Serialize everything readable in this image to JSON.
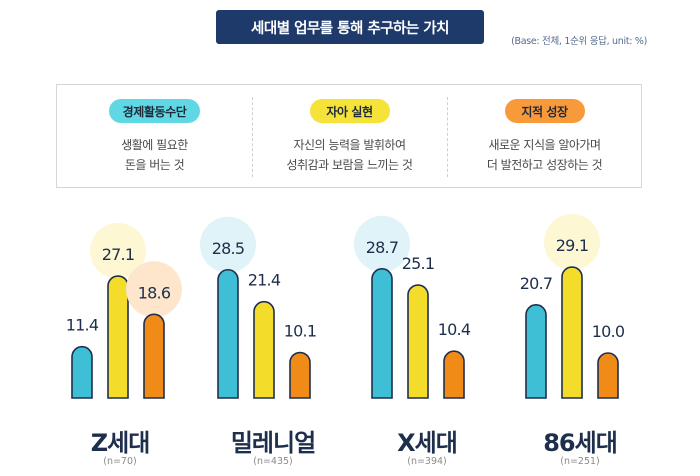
{
  "header": {
    "title": "세대별 업무를 통해 추구하는 가치",
    "base_note": "(Base: 전체, 1순위 응답, unit: %)"
  },
  "legend": [
    {
      "label": "경제활동수단",
      "desc_line1": "생활에 필요한",
      "desc_line2": "돈을 버는 것",
      "color": "#5fd8e4"
    },
    {
      "label": "자아 실현",
      "desc_line1": "자신의 능력을 발휘하여",
      "desc_line2": "성취감과 보람을 느끼는 것",
      "color": "#f6e33a"
    },
    {
      "label": "지적 성장",
      "desc_line1": "새로운 지식을 알아가며",
      "desc_line2": "더 발전하고 성장하는 것",
      "color": "#f99a3a"
    }
  ],
  "colors": {
    "bar1": "#3fbfd6",
    "bar2": "#f3dc2a",
    "bar3": "#f08b17",
    "bar_stroke": "#1e2f4d",
    "halo1": "#dff3f8",
    "halo2": "#fdf7d4",
    "halo3": "#fde6cc"
  },
  "chart_data": {
    "type": "bar",
    "categories": [
      "Z세대",
      "밀레니얼",
      "X세대",
      "86세대"
    ],
    "category_n": [
      "(n=70)",
      "(n=435)",
      "(n=394)",
      "(n=251)"
    ],
    "series": [
      {
        "name": "경제활동수단",
        "values": [
          11.4,
          28.5,
          28.7,
          20.7
        ]
      },
      {
        "name": "자아 실현",
        "values": [
          27.1,
          21.4,
          25.1,
          29.1
        ]
      },
      {
        "name": "지적 성장",
        "values": [
          18.6,
          10.1,
          10.4,
          10.0
        ]
      }
    ],
    "highlight_max": true,
    "value_labels": [
      [
        "11.4",
        "27.1",
        "18.6"
      ],
      [
        "28.5",
        "21.4",
        "10.1"
      ],
      [
        "28.7",
        "25.1",
        "10.4"
      ],
      [
        "20.7",
        "29.1",
        "10.0"
      ]
    ],
    "ylim": [
      0,
      30
    ]
  }
}
